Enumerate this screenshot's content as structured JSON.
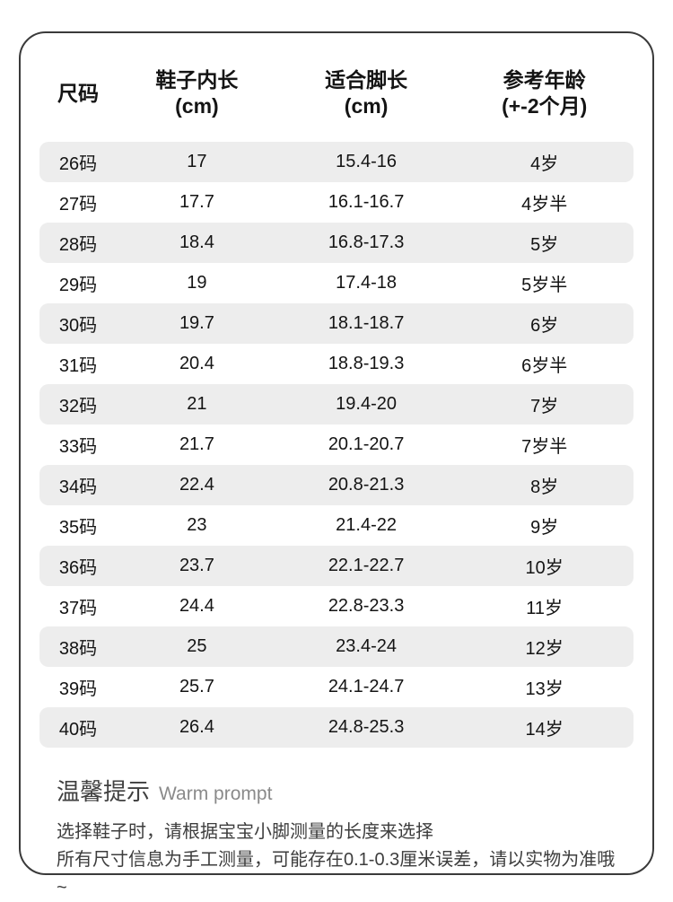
{
  "colors": {
    "stripe": "#ededed",
    "border": "#3a3a3a",
    "text": "#141414",
    "footer_title": "#404040",
    "footer_title_en": "#8a8a8a",
    "footer_text": "#3d3d3d"
  },
  "table": {
    "headers": [
      {
        "l1": "尺码",
        "l2": ""
      },
      {
        "l1": "鞋子内长",
        "l2": "(cm)"
      },
      {
        "l1": "适合脚长",
        "l2": "(cm)"
      },
      {
        "l1": "参考年龄",
        "l2": "(+-2个月)"
      }
    ],
    "rows": [
      [
        "26码",
        "17",
        "15.4-16",
        "4岁"
      ],
      [
        "27码",
        "17.7",
        "16.1-16.7",
        "4岁半"
      ],
      [
        "28码",
        "18.4",
        "16.8-17.3",
        "5岁"
      ],
      [
        "29码",
        "19",
        "17.4-18",
        "5岁半"
      ],
      [
        "30码",
        "19.7",
        "18.1-18.7",
        "6岁"
      ],
      [
        "31码",
        "20.4",
        "18.8-19.3",
        "6岁半"
      ],
      [
        "32码",
        "21",
        "19.4-20",
        "7岁"
      ],
      [
        "33码",
        "21.7",
        "20.1-20.7",
        "7岁半"
      ],
      [
        "34码",
        "22.4",
        "20.8-21.3",
        "8岁"
      ],
      [
        "35码",
        "23",
        "21.4-22",
        "9岁"
      ],
      [
        "36码",
        "23.7",
        "22.1-22.7",
        "10岁"
      ],
      [
        "37码",
        "24.4",
        "22.8-23.3",
        "11岁"
      ],
      [
        "38码",
        "25",
        "23.4-24",
        "12岁"
      ],
      [
        "39码",
        "25.7",
        "24.1-24.7",
        "13岁"
      ],
      [
        "40码",
        "26.4",
        "24.8-25.3",
        "14岁"
      ]
    ]
  },
  "footer": {
    "title_zh": "温馨提示",
    "title_en": "Warm prompt",
    "lines": [
      "选择鞋子时，请根据宝宝小脚测量的长度来选择",
      "所有尺寸信息为手工测量，可能存在0.1-0.3厘米误差，请以实物为准哦~"
    ]
  }
}
